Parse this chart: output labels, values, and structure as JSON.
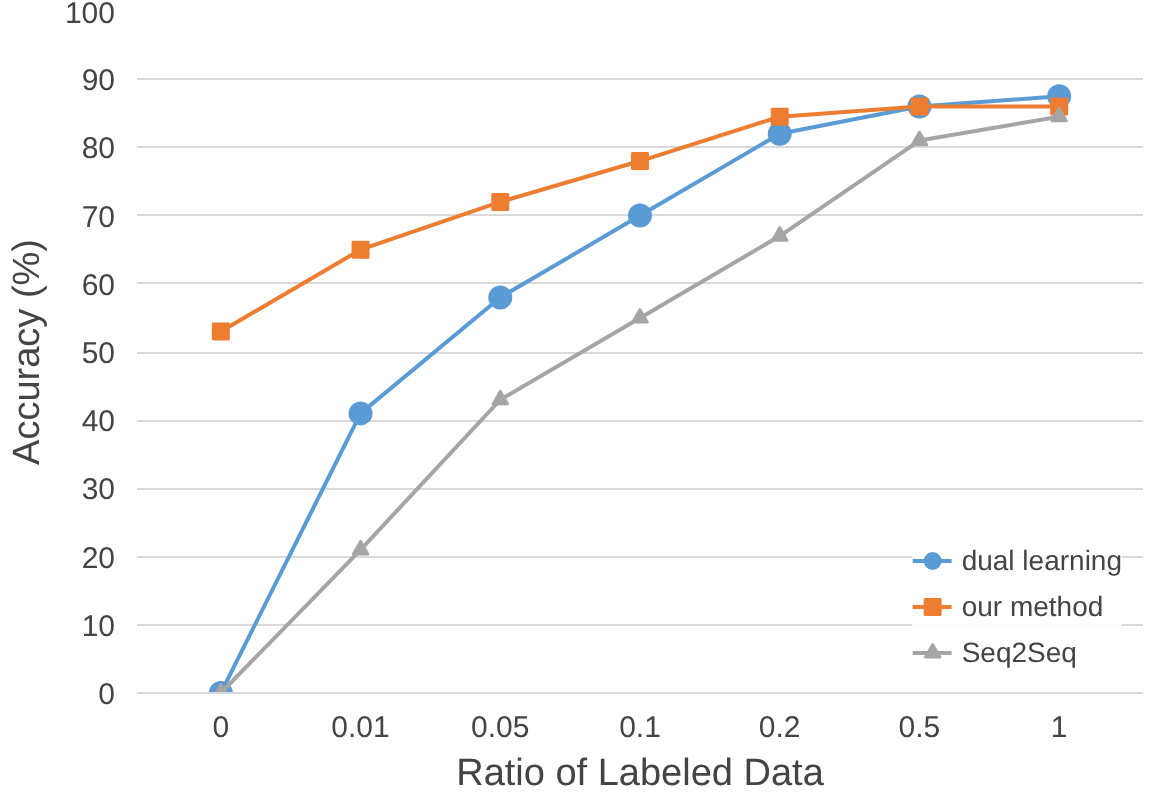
{
  "chart_data": {
    "type": "line",
    "xlabel": "Ratio of Labeled Data",
    "ylabel": "Accuracy (%)",
    "categories": [
      "0",
      "0.01",
      "0.05",
      "0.1",
      "0.2",
      "0.5",
      "1"
    ],
    "series": [
      {
        "name": "dual learning",
        "color": "#5b9bd5",
        "marker": "circle",
        "values": [
          0,
          41,
          58,
          70,
          82,
          86,
          87.5
        ]
      },
      {
        "name": "our method",
        "color": "#ed7d31",
        "marker": "square",
        "values": [
          53,
          65,
          72,
          78,
          84.5,
          86,
          86
        ]
      },
      {
        "name": "Seq2Seq",
        "color": "#a5a5a5",
        "marker": "triangle",
        "values": [
          0,
          21,
          43,
          55,
          67,
          81,
          84.5
        ]
      }
    ],
    "ylim": [
      0,
      100
    ],
    "yticks": [
      0,
      10,
      20,
      30,
      40,
      50,
      60,
      70,
      80,
      90,
      100
    ],
    "grid": "y",
    "legend": "bottom right"
  }
}
